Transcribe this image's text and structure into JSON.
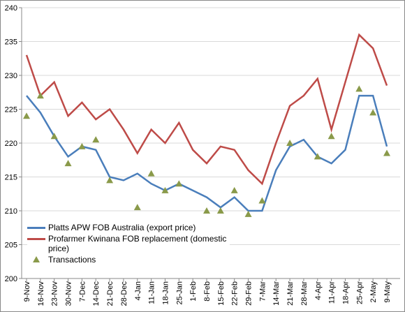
{
  "chart_data": {
    "type": "line",
    "categories": [
      "9-Nov",
      "16-Nov",
      "23-Nov",
      "30-Nov",
      "7-Dec",
      "14-Dec",
      "21-Dec",
      "28-Dec",
      "4-Jan",
      "11-Jan",
      "18-Jan",
      "25-Jan",
      "1-Feb",
      "8-Feb",
      "15-Feb",
      "22-Feb",
      "29-Feb",
      "7-Mar",
      "14-Mar",
      "21-Mar",
      "28-Mar",
      "4-Apr",
      "11-Apr",
      "18-Apr",
      "25-Apr",
      "2-May",
      "9-May"
    ],
    "series": [
      {
        "name": "Platts APW FOB Australia (export price)",
        "color": "#4a7ebb",
        "kind": "line",
        "values": [
          227,
          224.5,
          221,
          218,
          219.5,
          219,
          215,
          214.5,
          215.5,
          214,
          213,
          214,
          213,
          212,
          210.5,
          212,
          210,
          210,
          216,
          219.5,
          220.5,
          218,
          217,
          219,
          227,
          227,
          219.5
        ]
      },
      {
        "name": "Profarmer Kwinana FOB replacement (domestic price)",
        "color": "#be4b48",
        "kind": "line",
        "values": [
          233,
          227,
          229,
          224,
          226,
          223.5,
          225,
          222,
          218.5,
          222,
          220,
          223,
          219,
          217,
          219.5,
          219,
          216,
          214,
          220,
          225.5,
          227,
          229.5,
          222,
          229,
          236,
          234,
          228.5
        ]
      },
      {
        "name": "Transactions",
        "color": "#8a9a4a",
        "kind": "scatter",
        "values": [
          224,
          227,
          221,
          217,
          219.5,
          220.5,
          214.5,
          null,
          210.5,
          215.5,
          213,
          214,
          null,
          210,
          210,
          213,
          209.5,
          211.5,
          null,
          220,
          null,
          218,
          221,
          null,
          228,
          224.5,
          218.5
        ]
      }
    ],
    "ylim": [
      200,
      240
    ],
    "yticks": [
      200,
      205,
      210,
      215,
      220,
      225,
      230,
      235,
      240
    ],
    "grid": true
  }
}
